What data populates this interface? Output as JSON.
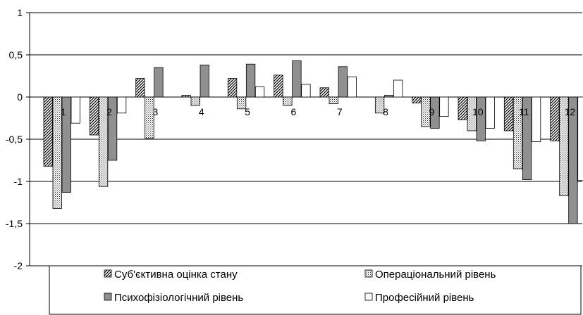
{
  "chart_data": {
    "type": "bar",
    "categories": [
      "1",
      "2",
      "3",
      "4",
      "5",
      "6",
      "7",
      "8",
      "9",
      "10",
      "11",
      "12"
    ],
    "series": [
      {
        "name": "Суб'єктивна оцінка стану",
        "pattern": "diag",
        "values": [
          -0.82,
          -0.45,
          0.22,
          0.02,
          0.22,
          0.26,
          0.11,
          0.0,
          -0.07,
          -0.27,
          -0.4,
          -0.52
        ]
      },
      {
        "name": "Операціональний рівень",
        "pattern": "dots",
        "values": [
          -1.32,
          -1.06,
          -0.49,
          -0.1,
          -0.14,
          -0.1,
          -0.08,
          -0.19,
          -0.35,
          -0.4,
          -0.85,
          -1.17
        ]
      },
      {
        "name": "Психофізіологічний рівень",
        "pattern": "gray",
        "values": [
          -1.13,
          -0.75,
          0.35,
          0.38,
          0.39,
          0.43,
          0.36,
          0.02,
          -0.37,
          -0.52,
          -0.98,
          -1.5
        ]
      },
      {
        "name": "Професійний рівень",
        "pattern": "white",
        "values": [
          -0.31,
          -0.19,
          0.0,
          0.0,
          0.12,
          0.15,
          0.24,
          0.2,
          -0.23,
          -0.37,
          -0.53,
          -0.99
        ]
      }
    ],
    "yticks": [
      "1",
      "0,5",
      "0",
      "-0,5",
      "-1",
      "-1,5",
      "-2"
    ],
    "ytick_values": [
      1,
      0.5,
      0,
      -0.5,
      -1,
      -1.5,
      -2
    ],
    "ylim": [
      -2,
      1
    ],
    "grid": true,
    "legend_position": "bottom",
    "colors": {
      "gray": "#909090",
      "stroke": "#000000"
    }
  }
}
